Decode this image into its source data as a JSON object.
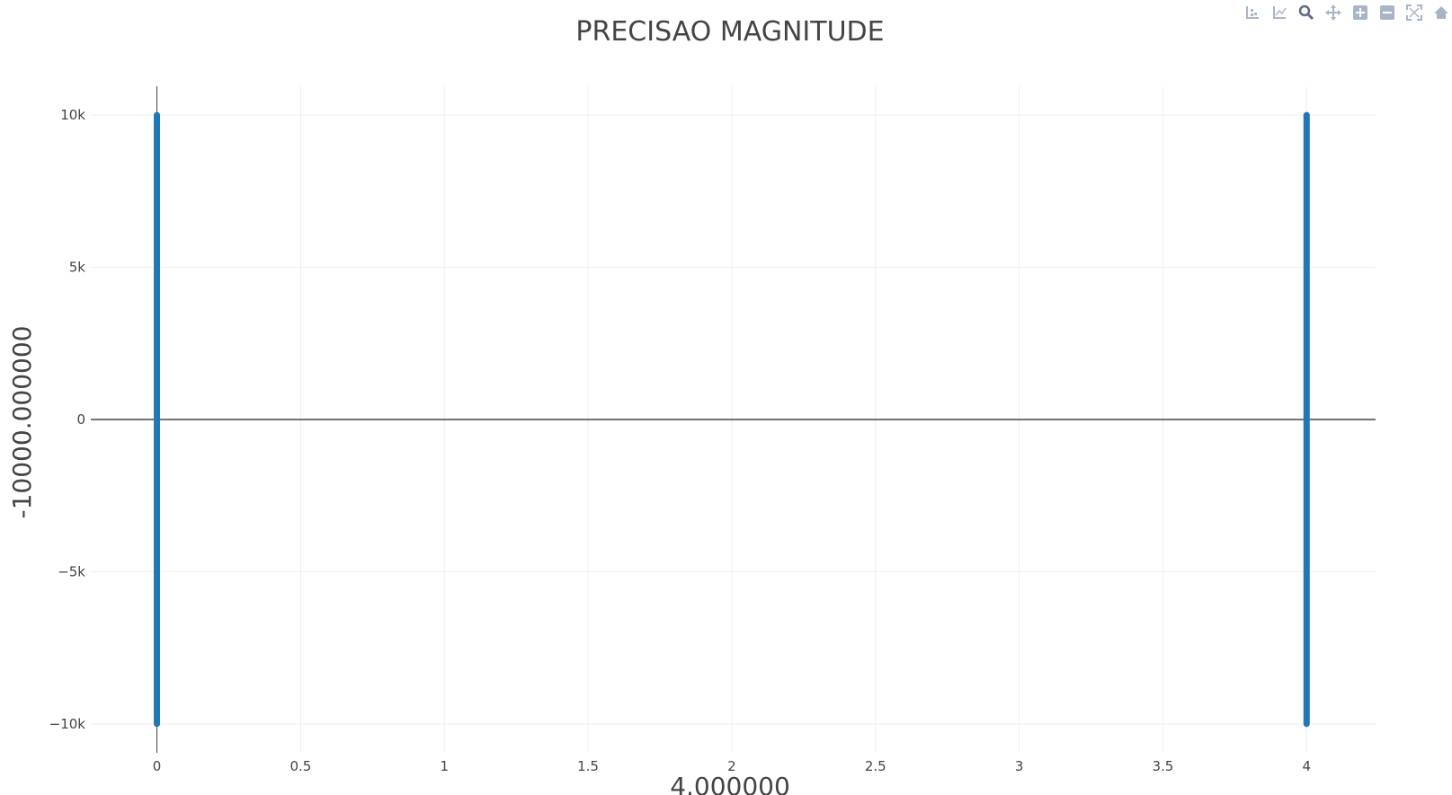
{
  "modebar": {
    "buttons": [
      {
        "name": "compare-data-icon"
      },
      {
        "name": "show-closest-icon"
      },
      {
        "name": "zoom-icon"
      },
      {
        "name": "pan-icon"
      },
      {
        "name": "zoom-in-icon"
      },
      {
        "name": "zoom-out-icon"
      },
      {
        "name": "autoscale-icon"
      },
      {
        "name": "reset-axes-icon"
      }
    ],
    "color": "#a8b4c8"
  },
  "chart_data": {
    "type": "scatter",
    "title": "PRECISAO MAGNITUDE",
    "xlabel": "4.000000",
    "ylabel": "-10000.000000",
    "xlim": [
      -0.23,
      4.24
    ],
    "ylim": [
      -10950,
      10950
    ],
    "x_ticks": [
      0,
      0.5,
      1,
      1.5,
      2,
      2.5,
      3,
      3.5,
      4
    ],
    "x_tick_labels": [
      "0",
      "0.5",
      "1",
      "1.5",
      "2",
      "2.5",
      "3",
      "3.5",
      "4"
    ],
    "y_ticks": [
      -10000,
      -5000,
      0,
      5000,
      10000
    ],
    "y_tick_labels": [
      "−10k",
      "−5k",
      "0",
      "5k",
      "10k"
    ],
    "grid": true,
    "series": [
      {
        "color": "#1f77b4",
        "points": [
          {
            "x": 0,
            "y_from": -10000,
            "y_to": 10000
          },
          {
            "x": 4,
            "y_from": -10000,
            "y_to": 10000
          }
        ]
      }
    ]
  }
}
